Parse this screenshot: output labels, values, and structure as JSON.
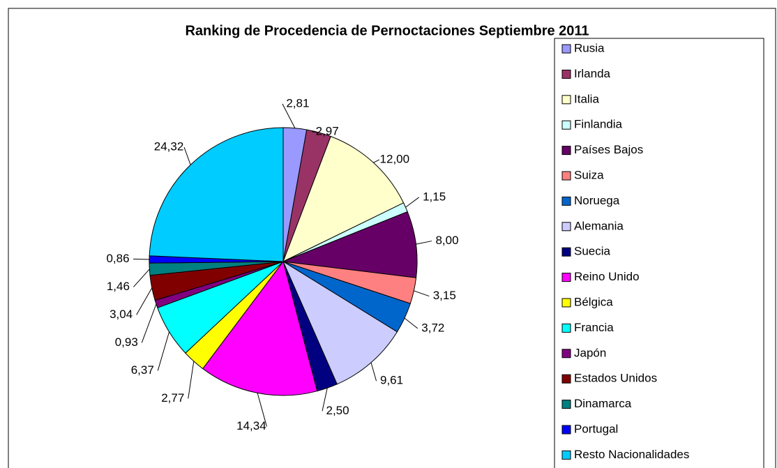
{
  "chart_data": {
    "type": "pie",
    "title": "Ranking de Procedencia de Pernoctaciones Septiembre 2011",
    "categories": [
      "Rusia",
      "Irlanda",
      "Italia",
      "Finlandia",
      "Países Bajos",
      "Suiza",
      "Noruega",
      "Alemania",
      "Suecia",
      "Reino Unido",
      "Bélgica",
      "Francia",
      "Japón",
      "Estados Unidos",
      "Dinamarca",
      "Portugal",
      "Resto Nacionalidades"
    ],
    "values": [
      2.81,
      2.97,
      12.0,
      1.15,
      8.0,
      3.15,
      3.72,
      9.61,
      2.5,
      14.34,
      2.77,
      6.37,
      0.93,
      3.04,
      1.46,
      0.86,
      24.32
    ],
    "value_labels": [
      "2,81",
      "2,97",
      "12,00",
      "1,15",
      "8,00",
      "3,15",
      "3,72",
      "9,61",
      "2,50",
      "14,34",
      "2,77",
      "6,37",
      "0,93",
      "3,04",
      "1,46",
      "0,86",
      "24,32"
    ],
    "colors": [
      "#9999FF",
      "#993366",
      "#FFFFCC",
      "#CCFFFF",
      "#660066",
      "#FF8080",
      "#0066CC",
      "#CCCCFF",
      "#000080",
      "#FF00FF",
      "#FFFF00",
      "#00FFFF",
      "#800080",
      "#800000",
      "#008080",
      "#0000FF",
      "#00CCFF"
    ],
    "legend": "right"
  }
}
